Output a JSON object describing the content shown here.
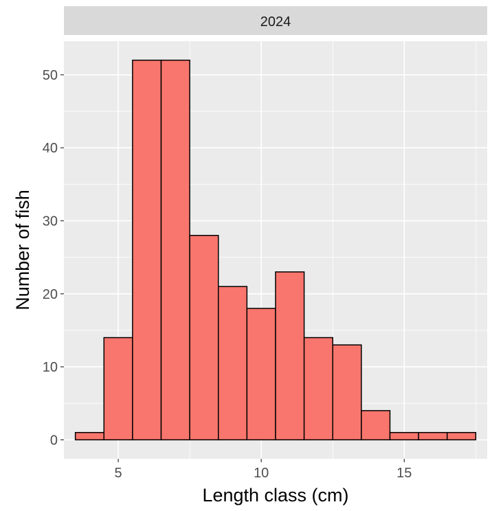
{
  "chart_data": {
    "type": "bar",
    "facet_label": "2024",
    "xlabel": "Length class (cm)",
    "ylabel": "Number of fish",
    "x": [
      4,
      5,
      6,
      7,
      8,
      9,
      10,
      11,
      12,
      13,
      14,
      15,
      16,
      17
    ],
    "values": [
      1,
      14,
      52,
      52,
      28,
      21,
      18,
      23,
      14,
      13,
      4,
      1,
      1,
      1
    ],
    "bin_width": 1,
    "xlim": [
      3.1,
      17.9
    ],
    "ylim": [
      -2.6,
      54.6
    ],
    "x_ticks": [
      5,
      10,
      15
    ],
    "y_ticks": [
      0,
      10,
      20,
      30,
      40,
      50
    ],
    "grid": true,
    "legend": "none",
    "colors": {
      "bar_fill": "#F8766D",
      "bar_outline": "#000000",
      "panel_background": "#EBEBEB",
      "strip_background": "#D9D9D9",
      "grid": "#FFFFFF"
    }
  }
}
